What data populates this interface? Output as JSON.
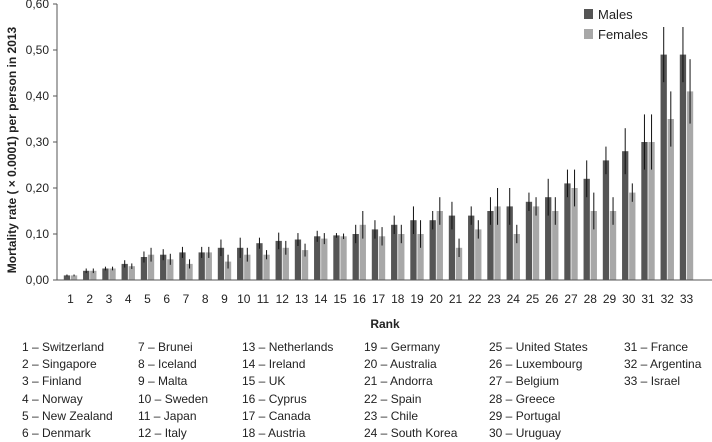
{
  "chart_data": {
    "type": "bar",
    "ylabel": "Mortality rate ( × 0.0001) per person in 2013",
    "xlabel": "Rank",
    "ylim": [
      0,
      0.6
    ],
    "yticks": [
      "0,00",
      "0,10",
      "0,20",
      "0,30",
      "0,40",
      "0,50",
      "0,60"
    ],
    "categories": [
      "1",
      "2",
      "3",
      "4",
      "5",
      "6",
      "7",
      "8",
      "9",
      "10",
      "11",
      "12",
      "13",
      "14",
      "15",
      "16",
      "17",
      "18",
      "19",
      "20",
      "21",
      "22",
      "23",
      "24",
      "25",
      "26",
      "27",
      "28",
      "29",
      "30",
      "31",
      "32",
      "33"
    ],
    "legend_position": "top-right",
    "grid": false,
    "error_bars": true,
    "series": [
      {
        "name": "Males",
        "color": "#555555",
        "values": [
          0.01,
          0.02,
          0.025,
          0.035,
          0.05,
          0.055,
          0.06,
          0.06,
          0.07,
          0.07,
          0.08,
          0.085,
          0.088,
          0.095,
          0.097,
          0.1,
          0.11,
          0.12,
          0.13,
          0.13,
          0.14,
          0.14,
          0.15,
          0.16,
          0.17,
          0.18,
          0.21,
          0.22,
          0.26,
          0.28,
          0.3,
          0.49,
          0.49
        ],
        "errors": [
          0.002,
          0.005,
          0.004,
          0.008,
          0.012,
          0.012,
          0.012,
          0.012,
          0.018,
          0.022,
          0.012,
          0.018,
          0.014,
          0.012,
          0.005,
          0.02,
          0.02,
          0.02,
          0.03,
          0.02,
          0.03,
          0.02,
          0.03,
          0.04,
          0.02,
          0.04,
          0.03,
          0.04,
          0.03,
          0.05,
          0.06,
          0.06,
          0.06
        ]
      },
      {
        "name": "Females",
        "color": "#a8a8a8",
        "values": [
          0.01,
          0.02,
          0.025,
          0.03,
          0.055,
          0.045,
          0.035,
          0.06,
          0.04,
          0.055,
          0.055,
          0.07,
          0.065,
          0.09,
          0.095,
          0.12,
          0.095,
          0.1,
          0.1,
          0.15,
          0.07,
          0.11,
          0.16,
          0.1,
          0.16,
          0.15,
          0.2,
          0.15,
          0.15,
          0.19,
          0.3,
          0.35,
          0.41
        ],
        "errors": [
          0.002,
          0.005,
          0.004,
          0.006,
          0.015,
          0.012,
          0.01,
          0.012,
          0.015,
          0.015,
          0.01,
          0.015,
          0.014,
          0.012,
          0.006,
          0.03,
          0.02,
          0.02,
          0.03,
          0.03,
          0.02,
          0.02,
          0.04,
          0.02,
          0.02,
          0.03,
          0.04,
          0.04,
          0.03,
          0.02,
          0.06,
          0.06,
          0.07
        ]
      }
    ]
  },
  "country_key": [
    "1 – Switzerland",
    "2 – Singapore",
    "3 – Finland",
    "4 – Norway",
    "5 – New Zealand",
    "6 – Denmark",
    "7 – Brunei",
    "8 – Iceland",
    "9 – Malta",
    "10 – Sweden",
    "11 – Japan",
    "12 – Italy",
    "13 – Netherlands",
    "14 – Ireland",
    "15 – UK",
    "16 – Cyprus",
    "17 – Canada",
    "18 – Austria",
    "19 – Germany",
    "20 – Australia",
    "21 – Andorra",
    "22 – Spain",
    "23 – Chile",
    "24 – South Korea",
    "25 – United States",
    "26 – Luxembourg",
    "27 – Belgium",
    "28 – Greece",
    "29 – Portugal",
    "30 – Uruguay",
    "31 – France",
    "32 – Argentina",
    "33 – Israel"
  ]
}
